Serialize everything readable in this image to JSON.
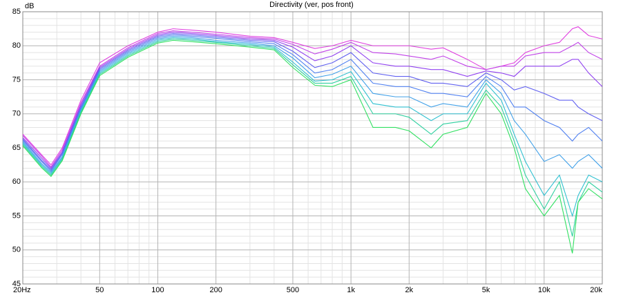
{
  "chart_data": {
    "type": "line",
    "title": "Directivity (ver, pos front)",
    "y_label": "dB",
    "log_x": true,
    "grid": true,
    "xlim": [
      20,
      20000
    ],
    "ylim": [
      45,
      85
    ],
    "xticks": [
      {
        "value": 20,
        "label": "20Hz"
      },
      50,
      100,
      200,
      500,
      {
        "value": 1000,
        "label": "1k"
      },
      {
        "value": 2000,
        "label": "2k"
      },
      {
        "value": 5000,
        "label": "5k"
      },
      {
        "value": 10000,
        "label": "10k"
      },
      {
        "value": 20000,
        "label": "20k"
      }
    ],
    "yticks": [
      45,
      50,
      55,
      60,
      65,
      70,
      75,
      80,
      85
    ],
    "xminorticks": [
      30,
      40,
      60,
      70,
      80,
      90,
      300,
      400,
      600,
      700,
      800,
      900,
      3000,
      4000,
      6000,
      7000,
      8000,
      9000
    ],
    "yminorticks": [
      46,
      47,
      48,
      49,
      51,
      52,
      53,
      54,
      56,
      57,
      58,
      59,
      61,
      62,
      63,
      64,
      66,
      67,
      68,
      69,
      71,
      72,
      73,
      74,
      76,
      77,
      78,
      79,
      81,
      82,
      83,
      84
    ],
    "x": [
      20,
      25,
      28,
      32,
      40,
      50,
      70,
      100,
      120,
      150,
      200,
      300,
      400,
      500,
      650,
      800,
      1000,
      1300,
      1700,
      2000,
      2600,
      3000,
      4000,
      5000,
      6000,
      7000,
      8000,
      10000,
      12000,
      14000,
      15000,
      17000,
      20000
    ],
    "series": [
      {
        "color": "#e040e0",
        "values": [
          67,
          64,
          62.5,
          65,
          72,
          77.5,
          80,
          82,
          82.5,
          82.3,
          82,
          81.4,
          81.2,
          80.5,
          79.6,
          80,
          80.8,
          80,
          80,
          80,
          79.5,
          79.7,
          78,
          76.5,
          77,
          77.5,
          79,
          80,
          80.5,
          82.5,
          82.8,
          81.5,
          81
        ]
      },
      {
        "color": "#c040e8",
        "values": [
          66.8,
          63.8,
          62.2,
          64.7,
          71.6,
          77,
          79.7,
          81.8,
          82.2,
          82,
          81.7,
          81.2,
          81,
          80.2,
          78.8,
          79.5,
          80.5,
          79,
          78.8,
          78.5,
          78,
          78.5,
          77,
          76.5,
          77,
          77,
          78.5,
          79,
          79,
          80,
          80.5,
          79,
          78
        ]
      },
      {
        "color": "#9040f0",
        "values": [
          66.5,
          63.5,
          62,
          64.4,
          71.3,
          76.8,
          79.5,
          81.6,
          82,
          81.8,
          81.5,
          81,
          80.8,
          79.8,
          77.8,
          78.5,
          80,
          77.5,
          77,
          77,
          76.5,
          76.5,
          75.5,
          76.3,
          76,
          75.5,
          77,
          77,
          77,
          78,
          78,
          76,
          74
        ]
      },
      {
        "color": "#6060f0",
        "values": [
          66.3,
          63.2,
          61.8,
          64.2,
          71,
          76.6,
          79.3,
          81.4,
          81.8,
          81.6,
          81.3,
          80.8,
          80.6,
          79.2,
          76.8,
          77.5,
          79,
          76,
          75.5,
          75.5,
          74.5,
          74.5,
          74,
          76,
          75,
          73.5,
          74,
          73,
          72,
          72,
          71,
          70,
          69
        ]
      },
      {
        "color": "#5080f0",
        "values": [
          66.1,
          63,
          61.6,
          64,
          70.8,
          76.4,
          79.1,
          81.2,
          81.6,
          81.4,
          81.1,
          80.6,
          80.3,
          78.7,
          76,
          76.5,
          78,
          74.5,
          74,
          74,
          73,
          73,
          72.5,
          75.5,
          74,
          71,
          71,
          69,
          68,
          66,
          67,
          68,
          66
        ]
      },
      {
        "color": "#40a0e8",
        "values": [
          65.9,
          62.7,
          61.4,
          63.7,
          70.6,
          76.2,
          78.9,
          81,
          81.4,
          81.2,
          80.8,
          80.4,
          80,
          78.2,
          75.3,
          75.8,
          77,
          73,
          72.5,
          72.5,
          71,
          71.5,
          71,
          75,
          73,
          69,
          67,
          63,
          64,
          62,
          63,
          64,
          62
        ]
      },
      {
        "color": "#30c0d0",
        "values": [
          65.7,
          62.5,
          61.2,
          63.5,
          70.4,
          76,
          78.7,
          80.8,
          81.2,
          81,
          80.6,
          80.2,
          79.8,
          77.6,
          74.8,
          75,
          76.2,
          71.5,
          71,
          71,
          69,
          70,
          70,
          74.5,
          72,
          67,
          63,
          58,
          61,
          55,
          58,
          61,
          60
        ]
      },
      {
        "color": "#30d0a0",
        "values": [
          65.5,
          62.3,
          61,
          63.3,
          70.2,
          75.8,
          78.5,
          80.6,
          81,
          80.8,
          80.5,
          80,
          79.6,
          77.2,
          74.5,
          74.5,
          75.5,
          70,
          70,
          69.5,
          67,
          68.5,
          69,
          73.5,
          71,
          66,
          61,
          56,
          60,
          52,
          57,
          60,
          58.5
        ]
      },
      {
        "color": "#30e060",
        "values": [
          65.3,
          62.1,
          60.8,
          63.1,
          70,
          75.6,
          78.3,
          80.4,
          80.8,
          80.6,
          80.3,
          79.8,
          79.4,
          76.8,
          74.2,
          74,
          75,
          68,
          68,
          67.5,
          65,
          67,
          68,
          73,
          70,
          65,
          59,
          55,
          58,
          49.5,
          57,
          59,
          57.5
        ]
      }
    ]
  }
}
